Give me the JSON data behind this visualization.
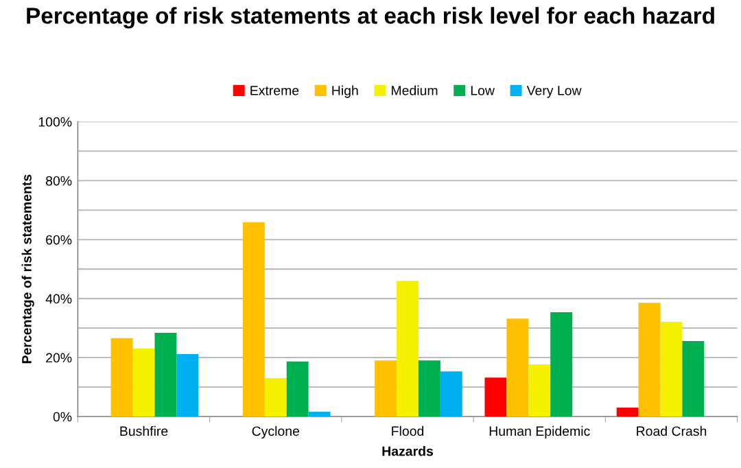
{
  "chart_data": {
    "type": "bar",
    "title": "Percentage of risk statements at each risk level for each hazard",
    "xlabel": "Hazards",
    "ylabel": "Percentage of risk statements",
    "categories": [
      "Bushfire",
      "Cyclone",
      "Flood",
      "Human Epidemic",
      "Road Crash"
    ],
    "series": [
      {
        "name": "Extreme",
        "color": "#ff0000",
        "values": [
          0,
          0,
          0,
          13.2,
          3.0
        ]
      },
      {
        "name": "High",
        "color": "#ffc000",
        "values": [
          26.6,
          65.9,
          19.0,
          33.2,
          38.6
        ]
      },
      {
        "name": "Medium",
        "color": "#f5f000",
        "values": [
          23.1,
          13.0,
          46.0,
          17.7,
          32.1
        ]
      },
      {
        "name": "Low",
        "color": "#00b050",
        "values": [
          28.4,
          18.7,
          19.0,
          35.4,
          25.6
        ]
      },
      {
        "name": "Very Low",
        "color": "#00b0f0",
        "values": [
          21.2,
          1.6,
          15.3,
          0,
          0
        ]
      }
    ],
    "ylim": [
      0,
      100
    ],
    "yticks": [
      {
        "value": 0,
        "label": "0%"
      },
      {
        "value": 10,
        "label": null
      },
      {
        "value": 20,
        "label": "20%"
      },
      {
        "value": 30,
        "label": null
      },
      {
        "value": 40,
        "label": "40%"
      },
      {
        "value": 50,
        "label": null
      },
      {
        "value": 60,
        "label": "60%"
      },
      {
        "value": 70,
        "label": null
      },
      {
        "value": 80,
        "label": "80%"
      },
      {
        "value": 90,
        "label": null
      },
      {
        "value": 100,
        "label": "100%"
      }
    ],
    "grid": "y",
    "legend": "top"
  }
}
